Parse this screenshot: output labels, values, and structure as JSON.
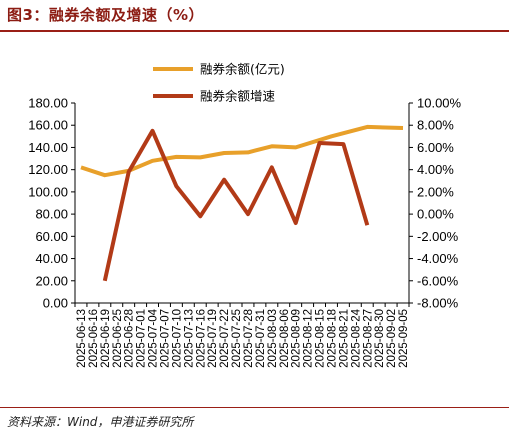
{
  "figure": {
    "title": "图3：融券余额及增速（%）",
    "source": "资料来源：Wind，申港证券研究所"
  },
  "chart_data": {
    "type": "line",
    "categories": [
      "2025-06-13",
      "2025-06-16",
      "2025-06-19",
      "2025-06-25",
      "2025-06-28",
      "2025-07-01",
      "2025-07-04",
      "2025-07-07",
      "2025-07-10",
      "2025-07-13",
      "2025-07-16",
      "2025-07-19",
      "2025-07-22",
      "2025-07-25",
      "2025-07-28",
      "2025-07-31",
      "2025-08-03",
      "2025-08-06",
      "2025-08-09",
      "2025-08-12",
      "2025-08-15",
      "2025-08-18",
      "2025-08-21",
      "2025-08-24",
      "2025-08-27",
      "2025-08-30",
      "2025-09-02",
      "2025-09-05"
    ],
    "series": [
      {
        "name": "融券余额(亿元)",
        "axis": "left",
        "color": "#E8A02A",
        "points": [
          [
            0,
            122
          ],
          [
            2,
            115
          ],
          [
            4,
            119
          ],
          [
            6,
            128
          ],
          [
            8,
            131.5
          ],
          [
            10,
            131
          ],
          [
            12,
            135
          ],
          [
            14,
            135.5
          ],
          [
            16,
            141
          ],
          [
            18,
            140
          ],
          [
            21,
            150
          ],
          [
            24,
            158.5
          ],
          [
            27,
            157.5
          ]
        ]
      },
      {
        "name": "融券余额增速",
        "axis": "right",
        "color": "#B23A17",
        "points": [
          [
            2,
            -6.0
          ],
          [
            4,
            3.8
          ],
          [
            6,
            7.5
          ],
          [
            8,
            2.5
          ],
          [
            10,
            -0.2
          ],
          [
            12,
            3.1
          ],
          [
            14,
            0.0
          ],
          [
            16,
            4.2
          ],
          [
            18,
            -0.8
          ],
          [
            20,
            6.4
          ],
          [
            22,
            6.3
          ],
          [
            24,
            -1.0
          ]
        ]
      }
    ],
    "y_left": {
      "min": 0,
      "max": 180,
      "step": 20,
      "ticks": [
        "0.00",
        "20.00",
        "40.00",
        "60.00",
        "80.00",
        "100.00",
        "120.00",
        "140.00",
        "160.00",
        "180.00"
      ]
    },
    "y_right": {
      "min": -8,
      "max": 10,
      "step": 2,
      "ticks": [
        "-8.00%",
        "-6.00%",
        "-4.00%",
        "-2.00%",
        "0.00%",
        "2.00%",
        "4.00%",
        "6.00%",
        "8.00%",
        "10.00%"
      ]
    },
    "legend": "top-center",
    "grid": false
  }
}
